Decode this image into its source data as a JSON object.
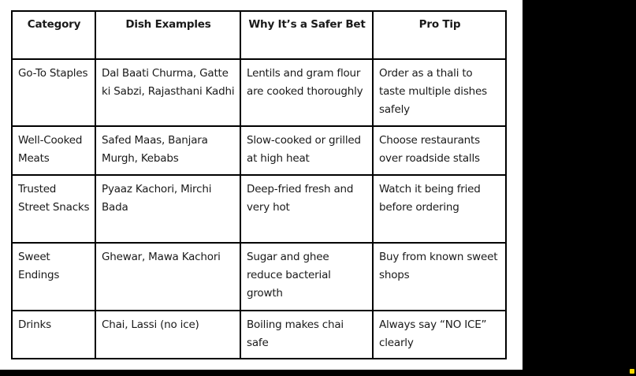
{
  "table": {
    "headers": [
      "Category",
      "Dish Examples",
      "Why It’s a Safer Bet",
      "Pro Tip"
    ],
    "rows": [
      [
        "Go-To Staples",
        "Dal Baati Churma, Gatte ki Sabzi, Rajasthani Kadhi",
        "Lentils and gram flour are cooked thoroughly",
        "Order as a thali to taste multiple dishes safely"
      ],
      [
        "Well-Cooked Meats",
        "Safed Maas, Banjara Murgh, Kebabs",
        "Slow-cooked or grilled at high heat",
        "Choose restaurants over roadside stalls"
      ],
      [
        "Trusted Street Snacks",
        "Pyaaz Kachori, Mirchi Bada",
        "Deep-fried fresh and very hot",
        "Watch it being fried before ordering"
      ],
      [
        "Sweet Endings",
        "Ghewar, Mawa Kachori",
        "Sugar and ghee reduce bacterial growth",
        "Buy from known sweet shops"
      ],
      [
        "Drinks",
        "Chai, Lassi (no ice)",
        "Boiling makes chai safe",
        "Always say “NO ICE” clearly"
      ]
    ]
  },
  "colors": {
    "background": "#000000",
    "panel": "#ffffff",
    "border": "#000000",
    "text": "#1a1a1a",
    "cursor_marker": "#f5d800"
  }
}
